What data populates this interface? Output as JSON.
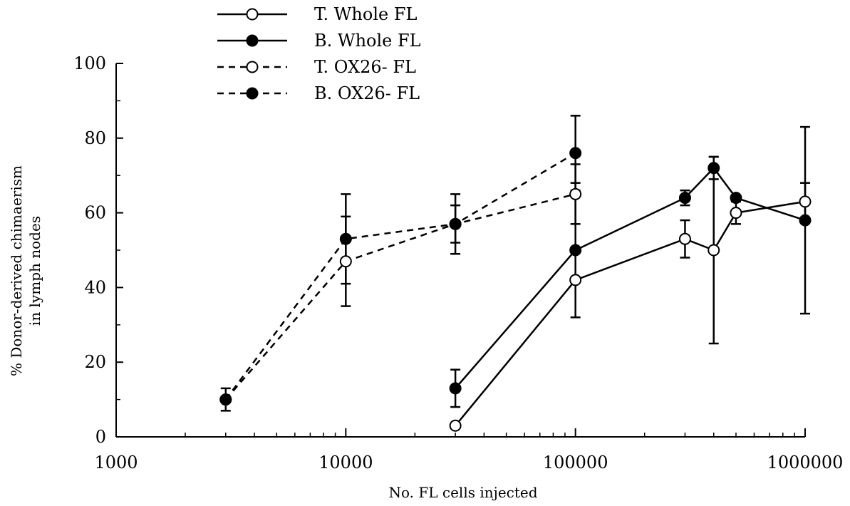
{
  "chart_data": {
    "type": "line",
    "title": "",
    "xlabel": "No. FL cells injected",
    "ylabel_line1": "% Donor-derived chimaerism",
    "ylabel_line2": "in lymph nodes",
    "x_scale": "log",
    "xlim": [
      1000,
      1000000
    ],
    "ylim": [
      0,
      100
    ],
    "x_tick_values": [
      1000,
      10000,
      100000,
      1000000
    ],
    "x_tick_labels": [
      "1000",
      "10000",
      "100000",
      "1000000"
    ],
    "y_tick_values": [
      0,
      20,
      40,
      60,
      80,
      100
    ],
    "y_tick_labels": [
      "0",
      "20",
      "40",
      "60",
      "80",
      "100"
    ],
    "grid": false,
    "legend_position": "top-left",
    "series": [
      {
        "name": "T. Whole FL",
        "line_style": "solid",
        "marker": "open-circle",
        "x": [
          30000,
          100000,
          300000,
          400000,
          500000,
          1000000
        ],
        "y": [
          3,
          42,
          53,
          50,
          60,
          63
        ],
        "error": [
          null,
          null,
          5,
          25,
          3,
          5
        ]
      },
      {
        "name": "B. Whole FL",
        "line_style": "solid",
        "marker": "filled-circle",
        "x": [
          30000,
          100000,
          300000,
          400000,
          500000,
          1000000
        ],
        "y": [
          13,
          50,
          64,
          72,
          64,
          58
        ],
        "error": [
          5,
          18,
          2,
          3,
          null,
          25
        ]
      },
      {
        "name": "T. OX26- FL",
        "line_style": "dashed",
        "marker": "open-circle",
        "x": [
          3000,
          10000,
          30000,
          100000
        ],
        "y": [
          10,
          47,
          57,
          65
        ],
        "error": [
          null,
          12,
          5,
          8
        ]
      },
      {
        "name": "B. OX26- FL",
        "line_style": "dashed",
        "marker": "filled-circle",
        "x": [
          3000,
          10000,
          30000,
          100000
        ],
        "y": [
          10,
          53,
          57,
          76
        ],
        "error": [
          3,
          12,
          8,
          10
        ]
      }
    ]
  }
}
